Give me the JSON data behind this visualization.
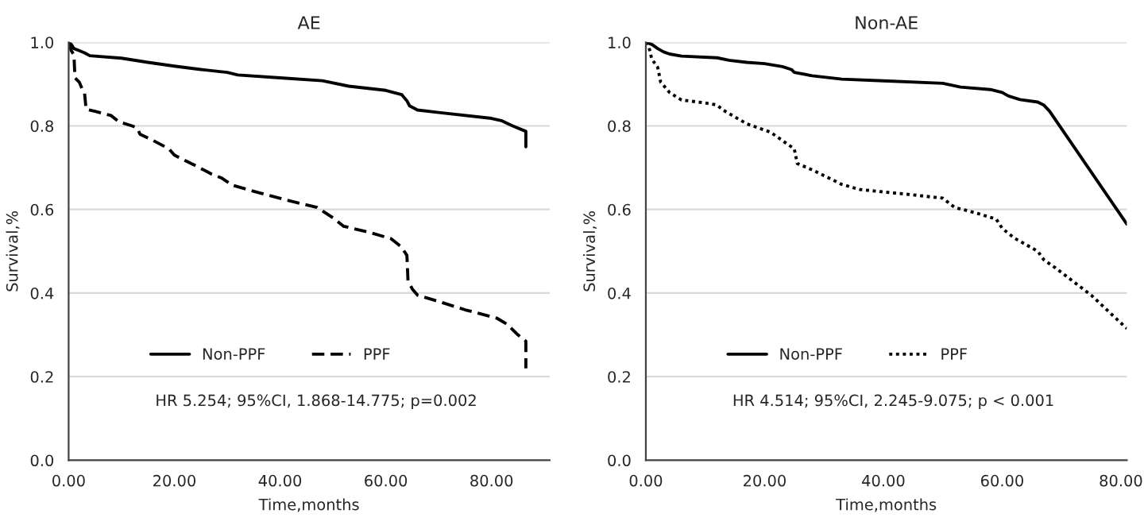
{
  "chart_data": [
    {
      "type": "line",
      "title": "AE",
      "xlabel": "Time,months",
      "ylabel": "Survival,%",
      "xlim": [
        0,
        91
      ],
      "ylim": [
        0,
        1
      ],
      "xticks": [
        {
          "value": 0,
          "label": "0.00"
        },
        {
          "value": 20,
          "label": "20.00"
        },
        {
          "value": 40,
          "label": "40.00"
        },
        {
          "value": 60,
          "label": "60.00"
        },
        {
          "value": 80,
          "label": "80.00"
        }
      ],
      "yticks": [
        {
          "value": 0,
          "label": "0.0"
        },
        {
          "value": 0.2,
          "label": "0.2"
        },
        {
          "value": 0.4,
          "label": "0.4"
        },
        {
          "value": 0.6,
          "label": "0.6"
        },
        {
          "value": 0.8,
          "label": "0.8"
        },
        {
          "value": 1,
          "label": "1.0"
        }
      ],
      "grid": "y",
      "legend": "bottom",
      "annotations": [
        "HR 5.254; 95%CI, 1.868-14.775; p=0.002"
      ],
      "series": [
        {
          "name": "Non-PPF",
          "color": "#000000",
          "line_style": "solid",
          "x": [
            0,
            0.5,
            1,
            2,
            3,
            4,
            10,
            15,
            20,
            25,
            30,
            32,
            40,
            48,
            53,
            60,
            63,
            64,
            64.5,
            66,
            70,
            80,
            82,
            84,
            86.5,
            86.5
          ],
          "values": [
            1.0,
            0.995,
            0.985,
            0.98,
            0.975,
            0.968,
            0.962,
            0.952,
            0.943,
            0.935,
            0.928,
            0.922,
            0.915,
            0.908,
            0.895,
            0.885,
            0.875,
            0.86,
            0.848,
            0.838,
            0.832,
            0.818,
            0.812,
            0.8,
            0.787,
            0.75
          ]
        },
        {
          "name": "PPF",
          "color": "#000000",
          "line_style": "dashed",
          "x": [
            0,
            0.5,
            1,
            1.2,
            2,
            2.5,
            3,
            3.3,
            5,
            8,
            9.5,
            12,
            13,
            13.5,
            16,
            19,
            20,
            24,
            27,
            29,
            31,
            36,
            42,
            47,
            50,
            52,
            57,
            61,
            63,
            64,
            64.2,
            65,
            66,
            70,
            75,
            81,
            83,
            85,
            86.5,
            86.5
          ],
          "values": [
            1.0,
            0.98,
            0.97,
            0.915,
            0.905,
            0.89,
            0.88,
            0.84,
            0.835,
            0.825,
            0.81,
            0.8,
            0.795,
            0.78,
            0.765,
            0.745,
            0.73,
            0.705,
            0.685,
            0.675,
            0.658,
            0.64,
            0.62,
            0.605,
            0.58,
            0.56,
            0.545,
            0.53,
            0.51,
            0.49,
            0.43,
            0.41,
            0.395,
            0.38,
            0.36,
            0.34,
            0.325,
            0.3,
            0.285,
            0.22
          ]
        }
      ]
    },
    {
      "type": "line",
      "title": "Non-AE",
      "xlabel": "Time,months",
      "ylabel": "Survival,%",
      "xlim": [
        0,
        81
      ],
      "ylim": [
        0,
        1
      ],
      "xticks": [
        {
          "value": 0,
          "label": "0.00"
        },
        {
          "value": 20,
          "label": "20.00"
        },
        {
          "value": 40,
          "label": "40.00"
        },
        {
          "value": 60,
          "label": "60.00"
        },
        {
          "value": 80,
          "label": "80.00"
        }
      ],
      "yticks": [
        {
          "value": 0,
          "label": "0.0"
        },
        {
          "value": 0.2,
          "label": "0.2"
        },
        {
          "value": 0.4,
          "label": "0.4"
        },
        {
          "value": 0.6,
          "label": "0.6"
        },
        {
          "value": 0.8,
          "label": "0.8"
        },
        {
          "value": 1,
          "label": "1.0"
        }
      ],
      "grid": "y",
      "legend": "bottom",
      "annotations": [
        "HR 4.514; 95%CI, 2.245-9.075; p < 0.001"
      ],
      "series": [
        {
          "name": "Non-PPF",
          "color": "#000000",
          "line_style": "solid",
          "x": [
            0,
            1,
            2,
            3,
            4,
            6,
            12,
            14,
            17,
            20,
            23,
            24.5,
            25,
            28,
            33,
            40,
            50,
            53,
            58,
            60,
            61,
            63,
            66,
            67,
            68,
            81
          ],
          "values": [
            1.0,
            0.995,
            0.985,
            0.977,
            0.972,
            0.967,
            0.963,
            0.957,
            0.952,
            0.949,
            0.942,
            0.935,
            0.928,
            0.92,
            0.912,
            0.908,
            0.902,
            0.893,
            0.887,
            0.88,
            0.872,
            0.863,
            0.857,
            0.85,
            0.835,
            0.565
          ]
        },
        {
          "name": "PPF",
          "color": "#000000",
          "line_style": "dotted",
          "x": [
            0,
            0.5,
            1,
            2,
            2.5,
            4,
            6,
            10,
            12,
            13,
            17,
            21,
            23,
            25,
            25.5,
            28,
            33,
            36,
            40,
            45,
            50,
            52,
            56,
            59,
            60,
            62,
            66,
            67,
            69,
            75,
            81
          ],
          "values": [
            1.0,
            0.99,
            0.96,
            0.94,
            0.905,
            0.88,
            0.862,
            0.855,
            0.85,
            0.838,
            0.805,
            0.785,
            0.765,
            0.745,
            0.71,
            0.695,
            0.66,
            0.648,
            0.642,
            0.635,
            0.627,
            0.605,
            0.59,
            0.577,
            0.555,
            0.532,
            0.5,
            0.48,
            0.46,
            0.395,
            0.315
          ]
        }
      ]
    }
  ]
}
